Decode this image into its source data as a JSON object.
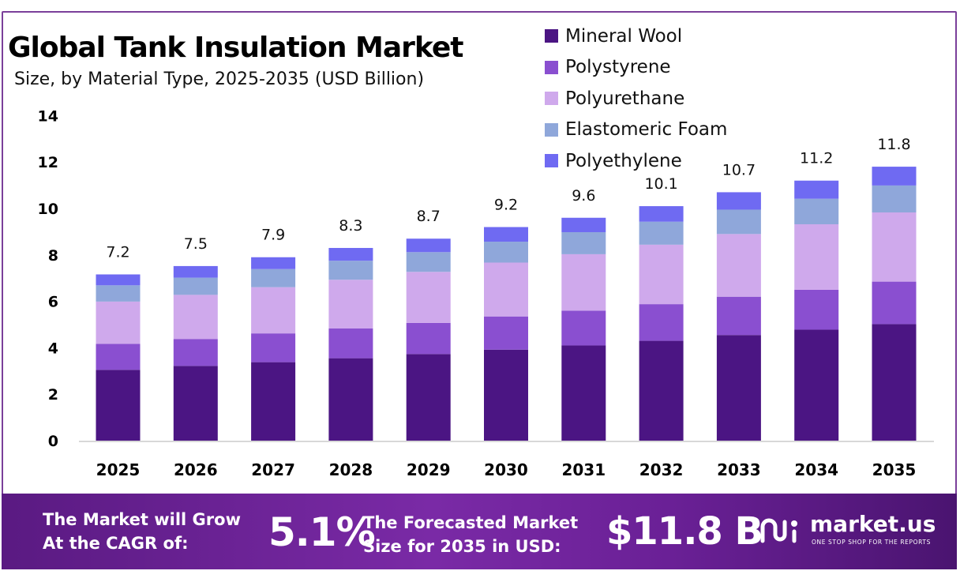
{
  "chart_data": {
    "type": "bar",
    "stacked": true,
    "title": "Global Tank Insulation Market",
    "subtitle": "Size, by Material Type, 2025-2035 (USD Billion)",
    "xlabel": "",
    "ylabel": "",
    "ylim": [
      0,
      14
    ],
    "yticks": [
      0,
      2,
      4,
      6,
      8,
      10,
      12,
      14
    ],
    "grid": false,
    "legend_position": "top-right",
    "categories": [
      "2025",
      "2026",
      "2027",
      "2028",
      "2029",
      "2030",
      "2031",
      "2032",
      "2033",
      "2034",
      "2035"
    ],
    "totals": [
      "7.2",
      "7.5",
      "7.9",
      "8.3",
      "8.7",
      "9.2",
      "9.6",
      "10.1",
      "10.7",
      "11.2",
      "11.8"
    ],
    "series": [
      {
        "name": "Mineral Wool",
        "color": "#4b1583",
        "values": [
          3.05,
          3.22,
          3.38,
          3.55,
          3.73,
          3.92,
          4.1,
          4.3,
          4.55,
          4.78,
          5.02
        ]
      },
      {
        "name": "Polystyrene",
        "color": "#8a4fd0",
        "values": [
          1.12,
          1.16,
          1.24,
          1.28,
          1.34,
          1.43,
          1.5,
          1.58,
          1.65,
          1.72,
          1.83
        ]
      },
      {
        "name": "Polyurethane",
        "color": "#cfa9ec",
        "values": [
          1.82,
          1.9,
          1.99,
          2.1,
          2.2,
          2.32,
          2.43,
          2.56,
          2.7,
          2.82,
          2.98
        ]
      },
      {
        "name": "Elastomeric Foam",
        "color": "#8fa7da",
        "values": [
          0.7,
          0.74,
          0.78,
          0.82,
          0.85,
          0.9,
          0.95,
          0.99,
          1.05,
          1.1,
          1.16
        ]
      },
      {
        "name": "Polyethylene",
        "color": "#6f6af2",
        "values": [
          0.47,
          0.5,
          0.51,
          0.55,
          0.58,
          0.63,
          0.62,
          0.67,
          0.75,
          0.78,
          0.81
        ]
      }
    ]
  },
  "banner": {
    "cagr_text": "The Market will Grow\nAt the CAGR of:",
    "cagr_value": "5.1%",
    "forecast_text": "The Forecasted Market\nSize for 2035 in USD:",
    "forecast_value": "$11.8 B",
    "brand_name": "market.us",
    "brand_tagline": "ONE STOP SHOP FOR THE REPORTS",
    "logo_icon": "market-us-logo-icon"
  }
}
